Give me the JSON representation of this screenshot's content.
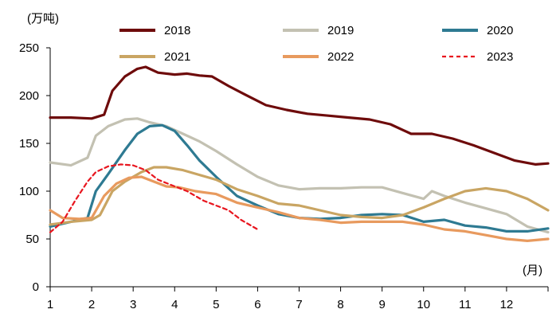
{
  "chart_data": {
    "type": "line",
    "y_unit_label": "(万吨)",
    "x_unit_label": "(月)",
    "xlim": [
      1,
      13
    ],
    "ylim": [
      0,
      250
    ],
    "y_ticks": [
      0,
      50,
      100,
      150,
      200,
      250
    ],
    "x_ticks": [
      "1",
      "2",
      "3",
      "4",
      "5",
      "6",
      "7",
      "8",
      "9",
      "10",
      "11",
      "12"
    ],
    "grid": false,
    "legend_position": "top",
    "series": [
      {
        "name": "2018",
        "color": "#6e0b0b",
        "dash": "solid",
        "x": [
          1.0,
          1.5,
          2.0,
          2.3,
          2.5,
          2.8,
          3.1,
          3.3,
          3.6,
          4.0,
          4.3,
          4.6,
          4.9,
          5.3,
          5.7,
          6.2,
          6.7,
          7.2,
          7.7,
          8.2,
          8.7,
          9.2,
          9.7,
          10.2,
          10.7,
          11.2,
          11.7,
          12.2,
          12.7,
          13.0
        ],
        "y": [
          177,
          177,
          176,
          180,
          205,
          220,
          228,
          230,
          224,
          222,
          223,
          221,
          220,
          210,
          201,
          190,
          185,
          181,
          179,
          177,
          175,
          170,
          160,
          160,
          155,
          148,
          140,
          132,
          128,
          129
        ]
      },
      {
        "name": "2019",
        "color": "#c3c1b2",
        "dash": "solid",
        "x": [
          1.0,
          1.5,
          1.9,
          2.1,
          2.4,
          2.8,
          3.1,
          3.4,
          3.8,
          4.2,
          4.6,
          5.0,
          5.5,
          6.0,
          6.5,
          7.0,
          7.5,
          8.0,
          8.5,
          9.0,
          9.5,
          10.0,
          10.2,
          10.5,
          11.0,
          11.5,
          12.0,
          12.5,
          13.0
        ],
        "y": [
          130,
          127,
          135,
          158,
          168,
          175,
          176,
          172,
          168,
          160,
          152,
          142,
          128,
          115,
          106,
          102,
          103,
          103,
          104,
          104,
          98,
          92,
          100,
          95,
          88,
          82,
          76,
          63,
          57
        ]
      },
      {
        "name": "2020",
        "color": "#2e7a92",
        "dash": "solid",
        "x": [
          1.0,
          1.5,
          1.9,
          2.1,
          2.4,
          2.8,
          3.1,
          3.4,
          3.7,
          4.0,
          4.3,
          4.6,
          5.0,
          5.5,
          6.0,
          6.5,
          7.0,
          7.5,
          8.0,
          8.5,
          9.0,
          9.5,
          10.0,
          10.5,
          11.0,
          11.5,
          12.0,
          12.5,
          13.0
        ],
        "y": [
          63,
          68,
          72,
          100,
          118,
          143,
          160,
          168,
          169,
          163,
          148,
          132,
          115,
          95,
          85,
          76,
          72,
          71,
          72,
          75,
          76,
          75,
          68,
          70,
          64,
          62,
          58,
          58,
          61
        ]
      },
      {
        "name": "2021",
        "color": "#c9a563",
        "dash": "solid",
        "x": [
          1.0,
          1.5,
          2.0,
          2.2,
          2.5,
          2.8,
          3.2,
          3.5,
          3.8,
          4.2,
          4.6,
          5.0,
          5.5,
          6.0,
          6.5,
          7.0,
          7.5,
          8.0,
          8.5,
          9.0,
          9.5,
          10.0,
          10.5,
          11.0,
          11.5,
          12.0,
          12.5,
          13.0
        ],
        "y": [
          65,
          68,
          70,
          75,
          100,
          110,
          120,
          125,
          125,
          122,
          117,
          112,
          102,
          95,
          87,
          85,
          80,
          75,
          73,
          72,
          75,
          83,
          92,
          100,
          103,
          100,
          92,
          80
        ]
      },
      {
        "name": "2022",
        "color": "#e89a5e",
        "dash": "solid",
        "x": [
          1.0,
          1.3,
          1.7,
          2.0,
          2.3,
          2.6,
          2.9,
          3.2,
          3.5,
          3.8,
          4.1,
          4.5,
          5.0,
          5.5,
          6.0,
          6.5,
          7.0,
          7.5,
          8.0,
          8.5,
          9.0,
          9.5,
          10.0,
          10.5,
          11.0,
          11.5,
          12.0,
          12.5,
          13.0
        ],
        "y": [
          80,
          72,
          71,
          72,
          95,
          108,
          114,
          115,
          110,
          105,
          104,
          100,
          97,
          88,
          83,
          78,
          72,
          70,
          67,
          68,
          68,
          68,
          65,
          60,
          58,
          54,
          50,
          48,
          50
        ]
      },
      {
        "name": "2023",
        "color": "#e8161f",
        "dash": "dashed",
        "x": [
          1.0,
          1.3,
          1.6,
          1.9,
          2.1,
          2.4,
          2.7,
          3.0,
          3.3,
          3.6,
          4.0,
          4.3,
          4.7,
          5.0,
          5.3,
          5.6,
          6.0
        ],
        "y": [
          57,
          68,
          90,
          110,
          120,
          126,
          128,
          127,
          122,
          112,
          105,
          100,
          90,
          85,
          80,
          70,
          60
        ]
      }
    ]
  }
}
